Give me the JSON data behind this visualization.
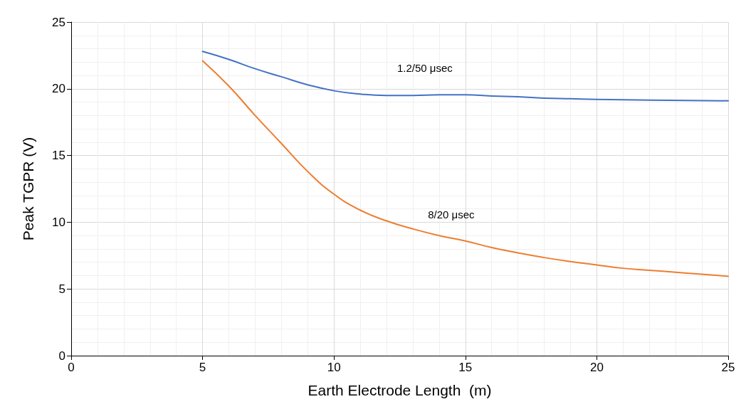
{
  "chart_data": {
    "type": "line",
    "xlabel": "Earth Electrode Length  (m)",
    "ylabel": "Peak TGPR (V)",
    "xlim": [
      0,
      25
    ],
    "xticks": [
      0,
      5,
      10,
      15,
      20,
      25
    ],
    "ylim": [
      0,
      25
    ],
    "yticks": [
      0,
      5,
      10,
      15,
      20,
      25
    ],
    "grid": true,
    "marker": "none",
    "line_style": "solid",
    "series": [
      {
        "name": "1.2/50 μsec",
        "color": "#4472c4",
        "x": [
          5,
          6,
          7,
          8,
          9,
          10,
          11,
          12,
          13,
          14,
          15,
          16,
          17,
          18,
          19,
          20,
          22,
          25
        ],
        "values": [
          22.8,
          22.2,
          21.5,
          20.9,
          20.3,
          19.85,
          19.6,
          19.5,
          19.5,
          19.55,
          19.55,
          19.45,
          19.4,
          19.3,
          19.25,
          19.2,
          19.15,
          19.1
        ]
      },
      {
        "name": "8/20 μsec",
        "color": "#ed7d31",
        "x": [
          5,
          6,
          7,
          8,
          9,
          10,
          11,
          12,
          13,
          14,
          15,
          16,
          17,
          18,
          19,
          20,
          21,
          22,
          23,
          24,
          25
        ],
        "values": [
          22.1,
          20.2,
          18.0,
          15.9,
          13.8,
          12.1,
          10.9,
          10.1,
          9.5,
          9.0,
          8.6,
          8.1,
          7.7,
          7.35,
          7.05,
          6.8,
          6.55,
          6.4,
          6.25,
          6.1,
          5.95
        ]
      }
    ]
  }
}
